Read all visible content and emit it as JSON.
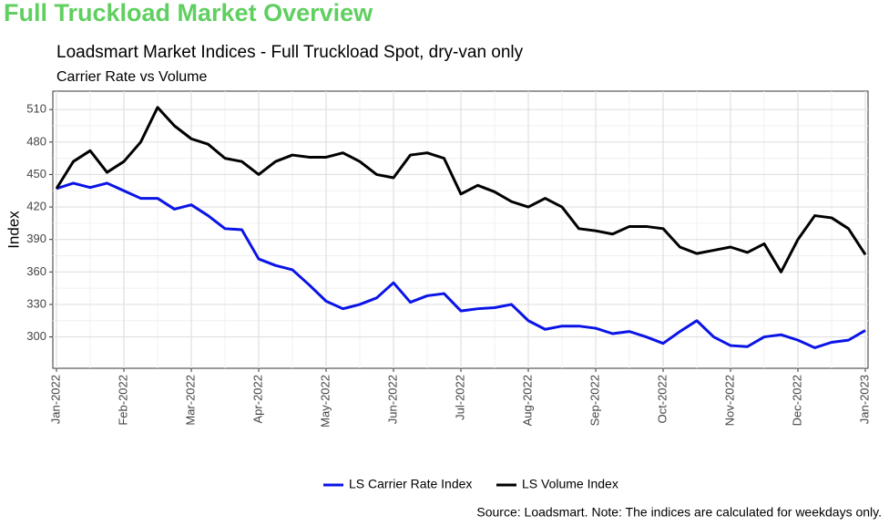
{
  "page_title": "Full Truckload Market Overview",
  "chart_data": {
    "type": "line",
    "title": "Loadsmart Market Indices - Full Truckload Spot, dry-van only",
    "subtitle": "Carrier Rate vs Volume",
    "y_label": "Index",
    "caption": "Source: Loadsmart. Note: The indices are calculated for weekdays only.",
    "x": [
      0,
      0.25,
      0.5,
      0.75,
      1,
      1.25,
      1.5,
      1.75,
      2,
      2.25,
      2.5,
      2.75,
      3,
      3.25,
      3.5,
      3.75,
      4,
      4.25,
      4.5,
      4.75,
      5,
      5.25,
      5.5,
      5.75,
      6,
      6.25,
      6.5,
      6.75,
      7,
      7.25,
      7.5,
      7.75,
      8,
      8.25,
      8.5,
      8.75,
      9,
      9.25,
      9.5,
      9.75,
      10,
      10.25,
      10.5,
      10.75,
      11,
      11.25,
      11.5,
      11.75,
      12
    ],
    "xlim": [
      0,
      12
    ],
    "xticks": [
      {
        "value": 0,
        "label": "Jan-2022"
      },
      {
        "value": 1,
        "label": "Feb-2022"
      },
      {
        "value": 2,
        "label": "Mar-2022"
      },
      {
        "value": 3,
        "label": "Apr-2022"
      },
      {
        "value": 4,
        "label": "May-2022"
      },
      {
        "value": 5,
        "label": "Jun-2022"
      },
      {
        "value": 6,
        "label": "Jul-2022"
      },
      {
        "value": 7,
        "label": "Aug-2022"
      },
      {
        "value": 8,
        "label": "Sep-2022"
      },
      {
        "value": 9,
        "label": "Oct-2022"
      },
      {
        "value": 10,
        "label": "Nov-2022"
      },
      {
        "value": 11,
        "label": "Dec-2022"
      },
      {
        "value": 12,
        "label": "Jan-2023"
      }
    ],
    "ylim": [
      271,
      527
    ],
    "yticks": [
      300,
      330,
      360,
      390,
      420,
      450,
      480,
      510
    ],
    "grid": true,
    "minor_grid": true,
    "legend": "bottom",
    "series": [
      {
        "name": "LS Carrier Rate Index",
        "color": "#0a14e6",
        "values": [
          437,
          442,
          438,
          442,
          435,
          428,
          428,
          418,
          422,
          412,
          400,
          399,
          372,
          366,
          362,
          348,
          333,
          326,
          330,
          336,
          350,
          332,
          338,
          340,
          324,
          326,
          327,
          330,
          315,
          307,
          310,
          310,
          308,
          303,
          305,
          300,
          294,
          305,
          315,
          300,
          292,
          291,
          300,
          302,
          297,
          290,
          295,
          297,
          306
        ]
      },
      {
        "name": "LS Volume Index",
        "color": "#000000",
        "values": [
          437,
          462,
          472,
          452,
          462,
          480,
          512,
          495,
          483,
          478,
          465,
          462,
          450,
          462,
          468,
          466,
          466,
          470,
          462,
          450,
          447,
          468,
          470,
          465,
          432,
          440,
          434,
          425,
          420,
          428,
          420,
          400,
          398,
          395,
          402,
          402,
          400,
          383,
          377,
          380,
          383,
          378,
          386,
          360,
          390,
          412,
          410,
          400,
          376
        ]
      }
    ]
  }
}
